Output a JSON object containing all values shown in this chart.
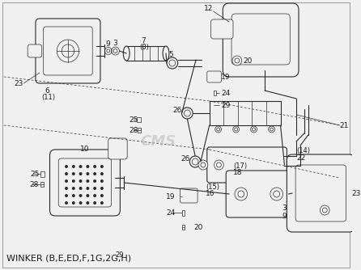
{
  "bg_color": "#f0f0f0",
  "line_color": "#2a2a2a",
  "text_color": "#1a1a1a",
  "watermark": "CMS",
  "watermark_color": "#bbbbbb",
  "caption": "WINKER (B,E,ED,F,1G,2G,H)",
  "caption_super": "29",
  "figsize": [
    4.46,
    3.34
  ],
  "dpi": 100,
  "border_color": "#999999"
}
